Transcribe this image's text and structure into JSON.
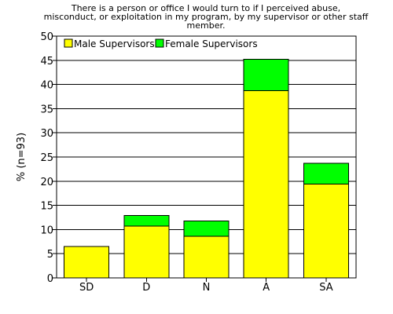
{
  "chart_data": {
    "type": "bar",
    "stacked": true,
    "title_lines": [
      "There is a person or office I would turn to if I perceived abuse,",
      "misconduct, or exploitation in my program, by my supervisor or other staff",
      "member."
    ],
    "xlabel": "",
    "ylabel": "% (n=93)",
    "categories": [
      "SD",
      "D",
      "N",
      "A",
      "SA"
    ],
    "series": [
      {
        "name": "Male Supervisors",
        "color": "#FFFF00",
        "values": [
          6.5,
          10.7,
          8.6,
          38.7,
          19.4
        ]
      },
      {
        "name": "Female Supervisors",
        "color": "#00FF00",
        "values": [
          0,
          2.2,
          3.2,
          6.5,
          4.3
        ]
      }
    ],
    "ylim": [
      0,
      50
    ],
    "yticks": [
      0,
      5,
      10,
      15,
      20,
      25,
      30,
      35,
      40,
      45,
      50
    ],
    "grid": true,
    "legend_position": "top-left"
  }
}
